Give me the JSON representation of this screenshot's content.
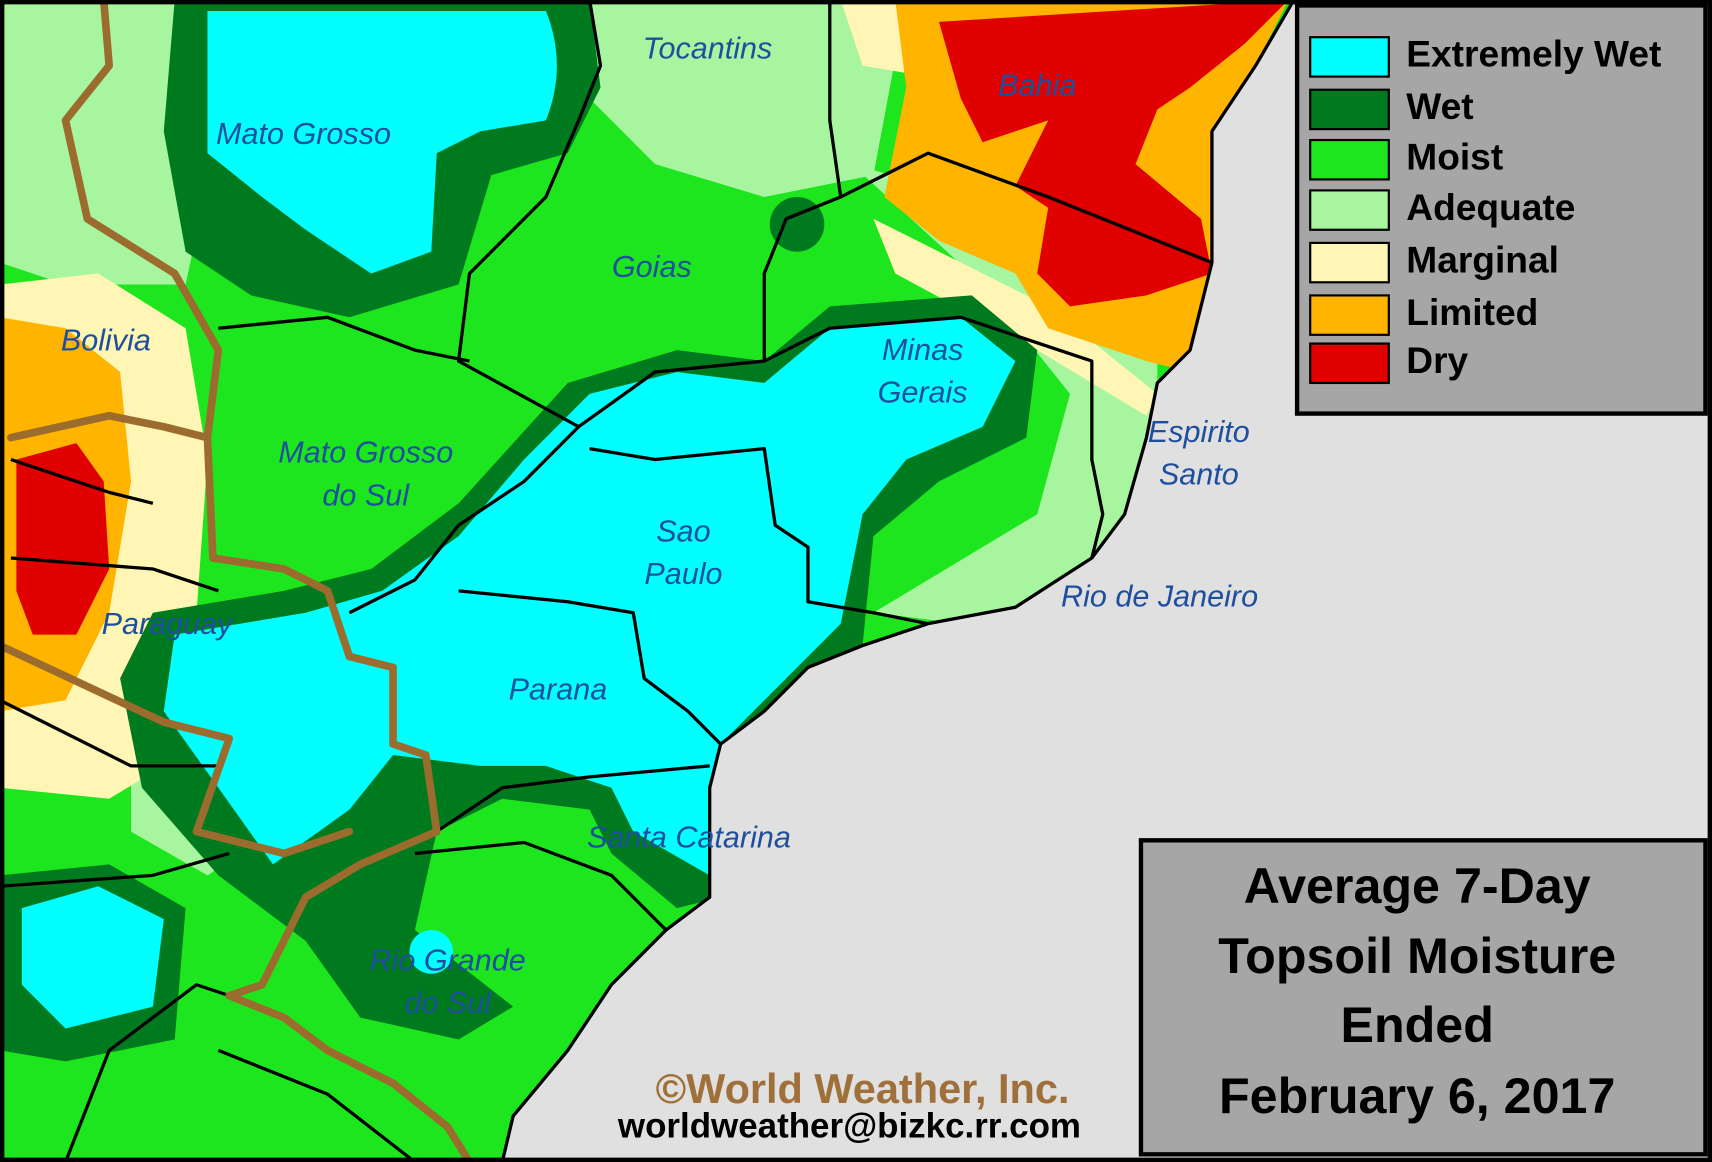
{
  "legend": {
    "items": [
      {
        "label": "Extremely Wet",
        "color": "#00ffff"
      },
      {
        "label": "Wet",
        "color": "#007a1e"
      },
      {
        "label": "Moist",
        "color": "#1ee61e"
      },
      {
        "label": "Adequate",
        "color": "#a8f5a0"
      },
      {
        "label": "Marginal",
        "color": "#fff5b4"
      },
      {
        "label": "Limited",
        "color": "#ffb400"
      },
      {
        "label": "Dry",
        "color": "#e00000"
      }
    ]
  },
  "regions": [
    [
      "Tocantins"
    ],
    [
      "Bahia"
    ],
    [
      "Mato Grosso"
    ],
    [
      "Goias"
    ],
    [
      "Bolivia"
    ],
    [
      "Minas",
      "Gerais"
    ],
    [
      "Mato Grosso",
      "do Sul"
    ],
    [
      "Espirito",
      "Santo"
    ],
    [
      "Sao",
      "Paulo"
    ],
    [
      "Rio de Janeiro"
    ],
    [
      "Paraguay"
    ],
    [
      "Parana"
    ],
    [
      "Santa Catarina"
    ],
    [
      "Rio Grande",
      "do Sul"
    ]
  ],
  "title": {
    "lines": [
      "Average 7-Day",
      "Topsoil Moisture",
      "Ended",
      "February 6, 2017"
    ]
  },
  "credit": "©World Weather, Inc.",
  "email": "worldweather@bizkc.rr.com"
}
